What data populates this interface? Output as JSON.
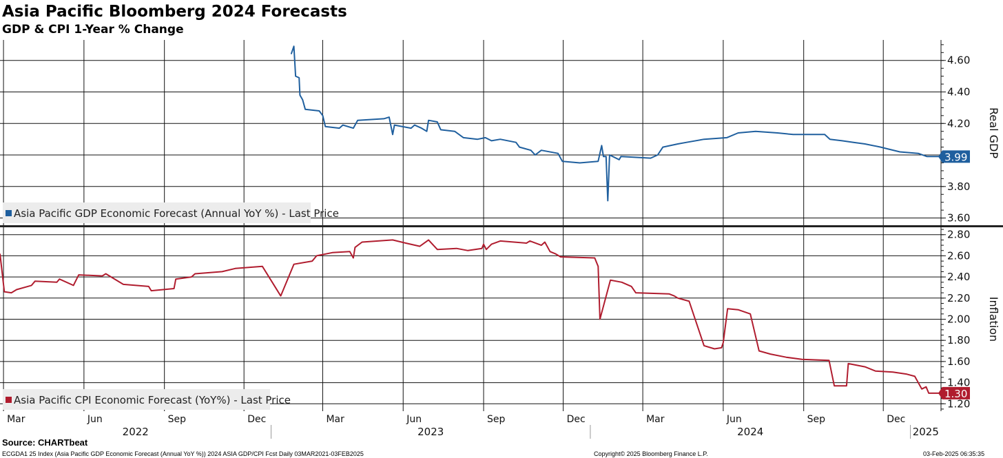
{
  "title": "Asia Pacific Bloomberg 2024 Forecasts",
  "subtitle": "GDP & CPI 1-Year % Change",
  "source": "Source: CHARTbeat",
  "footer": {
    "left": "ECGDA1 25 Index (Asia Pacific GDP Economic Forecast (Annual YoY %)) 2024 ASIA GDP/CPI Fcst  Daily 03MAR2021-03FEB2025",
    "center": "Copyright© 2025 Bloomberg Finance L.P.",
    "right": "03-Feb-2025 06:35:35"
  },
  "colors": {
    "gdp": "#1f5f9e",
    "cpi": "#b01c2e"
  },
  "chart_data": {
    "type": "line",
    "x_range": [
      "2022-02-25",
      "2025-02-05"
    ],
    "x_tick_labels": [
      {
        "date": "2022-03-01",
        "label": "Mar"
      },
      {
        "date": "2022-06-01",
        "label": "Jun"
      },
      {
        "date": "2022-09-01",
        "label": "Sep"
      },
      {
        "date": "2022-12-01",
        "label": "Dec"
      },
      {
        "date": "2023-03-01",
        "label": "Mar"
      },
      {
        "date": "2023-06-01",
        "label": "Jun"
      },
      {
        "date": "2023-09-01",
        "label": "Sep"
      },
      {
        "date": "2023-12-01",
        "label": "Dec"
      },
      {
        "date": "2024-03-01",
        "label": "Mar"
      },
      {
        "date": "2024-06-01",
        "label": "Jun"
      },
      {
        "date": "2024-09-01",
        "label": "Sep"
      },
      {
        "date": "2024-12-01",
        "label": "Dec"
      }
    ],
    "year_labels": [
      {
        "year": "2022",
        "from": "2022-02-25",
        "to": "2023-01-01"
      },
      {
        "year": "2023",
        "from": "2023-01-01",
        "to": "2024-01-01"
      },
      {
        "year": "2024",
        "from": "2024-01-01",
        "to": "2025-01-01"
      },
      {
        "year": "2025",
        "from": "2025-01-01",
        "to": "2025-02-05"
      }
    ],
    "panels": [
      {
        "id": "gdp",
        "axis_label": "Real GDP",
        "ylim": [
          3.55,
          4.73
        ],
        "y_ticks": [
          "3.60",
          "3.80",
          "4.00",
          "4.20",
          "4.40",
          "4.60"
        ],
        "last_value": "3.99",
        "series": {
          "name": "Asia Pacific GDP Economic Forecast (Annual YoY %) - Last Price",
          "points": [
            [
              "2023-01-24",
              4.64
            ],
            [
              "2023-01-27",
              4.69
            ],
            [
              "2023-01-29",
              4.5
            ],
            [
              "2023-02-02",
              4.49
            ],
            [
              "2023-02-03",
              4.38
            ],
            [
              "2023-02-06",
              4.35
            ],
            [
              "2023-02-09",
              4.29
            ],
            [
              "2023-02-25",
              4.28
            ],
            [
              "2023-03-01",
              4.25
            ],
            [
              "2023-03-04",
              4.18
            ],
            [
              "2023-03-20",
              4.17
            ],
            [
              "2023-03-24",
              4.19
            ],
            [
              "2023-04-05",
              4.17
            ],
            [
              "2023-04-10",
              4.22
            ],
            [
              "2023-05-10",
              4.23
            ],
            [
              "2023-05-16",
              4.24
            ],
            [
              "2023-05-20",
              4.13
            ],
            [
              "2023-05-22",
              4.19
            ],
            [
              "2023-06-10",
              4.17
            ],
            [
              "2023-06-14",
              4.19
            ],
            [
              "2023-06-22",
              4.17
            ],
            [
              "2023-06-28",
              4.15
            ],
            [
              "2023-06-30",
              4.22
            ],
            [
              "2023-07-10",
              4.21
            ],
            [
              "2023-07-14",
              4.16
            ],
            [
              "2023-07-30",
              4.15
            ],
            [
              "2023-08-09",
              4.11
            ],
            [
              "2023-08-25",
              4.1
            ],
            [
              "2023-09-03",
              4.11
            ],
            [
              "2023-09-10",
              4.09
            ],
            [
              "2023-09-20",
              4.1
            ],
            [
              "2023-10-08",
              4.08
            ],
            [
              "2023-10-12",
              4.05
            ],
            [
              "2023-10-25",
              4.03
            ],
            [
              "2023-10-30",
              4.0
            ],
            [
              "2023-11-06",
              4.03
            ],
            [
              "2023-11-25",
              4.01
            ],
            [
              "2023-11-30",
              3.96
            ],
            [
              "2023-12-20",
              3.95
            ],
            [
              "2024-01-10",
              3.96
            ],
            [
              "2024-01-14",
              4.06
            ],
            [
              "2024-01-16",
              3.99
            ],
            [
              "2024-01-19",
              3.99
            ],
            [
              "2024-01-21",
              3.71
            ],
            [
              "2024-01-23",
              4.0
            ],
            [
              "2024-02-03",
              3.97
            ],
            [
              "2024-02-05",
              3.99
            ],
            [
              "2024-03-10",
              3.98
            ],
            [
              "2024-03-18",
              4.0
            ],
            [
              "2024-03-24",
              4.05
            ],
            [
              "2024-04-10",
              4.07
            ],
            [
              "2024-04-20",
              4.08
            ],
            [
              "2024-05-10",
              4.1
            ],
            [
              "2024-06-05",
              4.11
            ],
            [
              "2024-06-18",
              4.14
            ],
            [
              "2024-07-08",
              4.15
            ],
            [
              "2024-08-02",
              4.14
            ],
            [
              "2024-08-20",
              4.13
            ],
            [
              "2024-09-25",
              4.13
            ],
            [
              "2024-10-01",
              4.1
            ],
            [
              "2024-10-15",
              4.09
            ],
            [
              "2024-10-28",
              4.08
            ],
            [
              "2024-11-10",
              4.07
            ],
            [
              "2024-11-28",
              4.05
            ],
            [
              "2024-12-05",
              4.04
            ],
            [
              "2024-12-20",
              4.02
            ],
            [
              "2025-01-10",
              4.01
            ],
            [
              "2025-01-20",
              3.99
            ],
            [
              "2025-02-03",
              3.99
            ]
          ]
        }
      },
      {
        "id": "cpi",
        "axis_label": "Inflation",
        "ylim": [
          1.13,
          2.87
        ],
        "y_ticks": [
          "1.20",
          "1.40",
          "1.60",
          "1.80",
          "2.00",
          "2.20",
          "2.40",
          "2.60",
          "2.80"
        ],
        "last_value": "1.30",
        "series": {
          "name": "Asia Pacific CPI Economic Forecast (YoY%) - Last Price",
          "points": [
            [
              "2022-02-25",
              2.62
            ],
            [
              "2022-03-02",
              2.26
            ],
            [
              "2022-03-10",
              2.25
            ],
            [
              "2022-03-16",
              2.28
            ],
            [
              "2022-04-02",
              2.32
            ],
            [
              "2022-04-06",
              2.36
            ],
            [
              "2022-05-01",
              2.35
            ],
            [
              "2022-05-04",
              2.38
            ],
            [
              "2022-05-20",
              2.32
            ],
            [
              "2022-05-26",
              2.42
            ],
            [
              "2022-06-22",
              2.41
            ],
            [
              "2022-06-26",
              2.43
            ],
            [
              "2022-07-16",
              2.33
            ],
            [
              "2022-08-14",
              2.31
            ],
            [
              "2022-08-17",
              2.27
            ],
            [
              "2022-09-12",
              2.29
            ],
            [
              "2022-09-14",
              2.38
            ],
            [
              "2022-10-02",
              2.4
            ],
            [
              "2022-10-06",
              2.43
            ],
            [
              "2022-11-06",
              2.45
            ],
            [
              "2022-11-21",
              2.48
            ],
            [
              "2022-12-22",
              2.5
            ],
            [
              "2023-01-12",
              2.22
            ],
            [
              "2023-01-27",
              2.52
            ],
            [
              "2023-02-17",
              2.55
            ],
            [
              "2023-02-22",
              2.6
            ],
            [
              "2023-03-12",
              2.63
            ],
            [
              "2023-04-01",
              2.64
            ],
            [
              "2023-04-05",
              2.58
            ],
            [
              "2023-04-07",
              2.68
            ],
            [
              "2023-04-15",
              2.73
            ],
            [
              "2023-05-20",
              2.75
            ],
            [
              "2023-06-04",
              2.72
            ],
            [
              "2023-06-20",
              2.69
            ],
            [
              "2023-06-30",
              2.75
            ],
            [
              "2023-07-10",
              2.66
            ],
            [
              "2023-08-01",
              2.67
            ],
            [
              "2023-08-14",
              2.65
            ],
            [
              "2023-08-30",
              2.67
            ],
            [
              "2023-09-01",
              2.71
            ],
            [
              "2023-09-04",
              2.66
            ],
            [
              "2023-09-10",
              2.71
            ],
            [
              "2023-09-20",
              2.74
            ],
            [
              "2023-10-20",
              2.72
            ],
            [
              "2023-10-24",
              2.74
            ],
            [
              "2023-11-06",
              2.7
            ],
            [
              "2023-11-10",
              2.73
            ],
            [
              "2023-11-16",
              2.64
            ],
            [
              "2023-11-22",
              2.62
            ],
            [
              "2023-11-28",
              2.59
            ],
            [
              "2024-01-06",
              2.58
            ],
            [
              "2024-01-10",
              2.5
            ],
            [
              "2024-01-12",
              2.0
            ],
            [
              "2024-01-24",
              2.37
            ],
            [
              "2024-02-06",
              2.35
            ],
            [
              "2024-02-17",
              2.31
            ],
            [
              "2024-02-22",
              2.25
            ],
            [
              "2024-03-31",
              2.24
            ],
            [
              "2024-04-06",
              2.22
            ],
            [
              "2024-04-10",
              2.2
            ],
            [
              "2024-04-23",
              2.17
            ],
            [
              "2024-05-10",
              1.75
            ],
            [
              "2024-05-22",
              1.72
            ],
            [
              "2024-05-30",
              1.73
            ],
            [
              "2024-06-01",
              1.78
            ],
            [
              "2024-06-06",
              2.1
            ],
            [
              "2024-06-18",
              2.09
            ],
            [
              "2024-07-02",
              2.05
            ],
            [
              "2024-07-12",
              1.7
            ],
            [
              "2024-07-25",
              1.67
            ],
            [
              "2024-08-12",
              1.64
            ],
            [
              "2024-08-30",
              1.62
            ],
            [
              "2024-09-30",
              1.61
            ],
            [
              "2024-10-06",
              1.37
            ],
            [
              "2024-10-20",
              1.37
            ],
            [
              "2024-10-22",
              1.58
            ],
            [
              "2024-11-10",
              1.55
            ],
            [
              "2024-11-22",
              1.51
            ],
            [
              "2024-12-12",
              1.5
            ],
            [
              "2024-12-28",
              1.48
            ],
            [
              "2025-01-06",
              1.46
            ],
            [
              "2025-01-14",
              1.34
            ],
            [
              "2025-01-19",
              1.36
            ],
            [
              "2025-01-22",
              1.3
            ],
            [
              "2025-02-03",
              1.3
            ]
          ]
        }
      }
    ]
  }
}
